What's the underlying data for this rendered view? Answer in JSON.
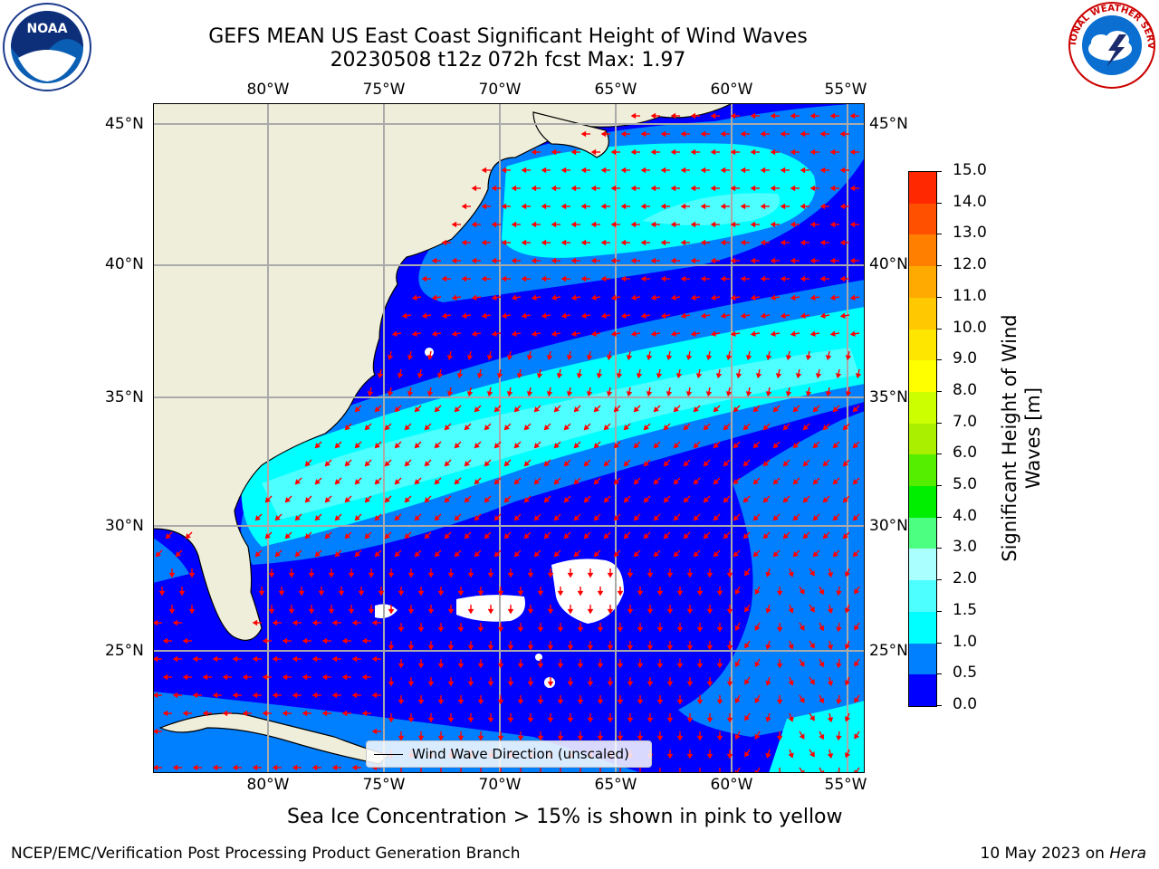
{
  "title": {
    "line1": "GEFS MEAN US East Coast Significant Height of Wind Waves",
    "line2": "20230508 t12z 072h fcst   Max: 1.97"
  },
  "map": {
    "lon_labels": [
      "80°W",
      "75°W",
      "70°W",
      "65°W",
      "60°W",
      "55°W"
    ],
    "lat_labels": [
      "45°N",
      "40°N",
      "35°N",
      "30°N",
      "25°N"
    ],
    "legend_label": "Wind Wave Direction (unscaled)",
    "land_color": "#efeedb",
    "arrow_color": "#ff0000"
  },
  "colorbar": {
    "label": "Significant Height of Wind Waves [m]",
    "ticks": [
      "15.0",
      "14.0",
      "13.0",
      "12.0",
      "11.0",
      "10.0",
      "9.0",
      "8.0",
      "7.0",
      "6.0",
      "5.0",
      "4.0",
      "3.0",
      "2.0",
      "1.5",
      "1.0",
      "0.5",
      "0.0"
    ],
    "colors_bottom_to_top": [
      "#0000ff",
      "#0080ff",
      "#00ffff",
      "#4dffff",
      "#aaffff",
      "#4dff80",
      "#00ee00",
      "#55ee00",
      "#aaee00",
      "#ccff00",
      "#ffff00",
      "#ffe600",
      "#ffc800",
      "#ffaa00",
      "#ff8000",
      "#ff5000",
      "#ff2800"
    ]
  },
  "note": "Sea Ice Concentration > 15% is shown in pink to yellow",
  "footer": {
    "left": "NCEP/EMC/Verification Post Processing Product Generation Branch",
    "right_date": "10 May 2023 on ",
    "right_host": "Hera"
  },
  "logos": {
    "noaa_text": "NOAA",
    "nws_text": "NATIONAL WEATHER SERVICE"
  }
}
